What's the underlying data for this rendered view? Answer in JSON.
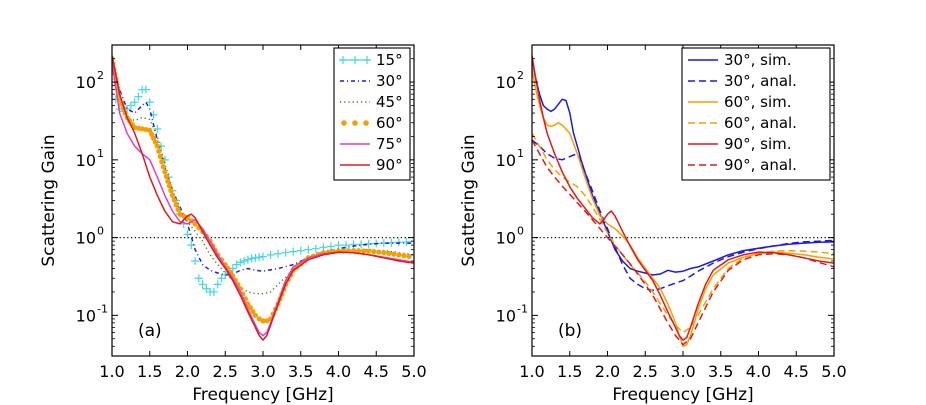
{
  "chart_data": [
    {
      "type": "line",
      "panel_label": "(a)",
      "xlabel": "Frequency [GHz]",
      "ylabel": "Scattering Gain",
      "xlim": [
        1.0,
        5.0
      ],
      "ylim": [
        0.03,
        300
      ],
      "yscale": "log",
      "x_ticks": [
        1.0,
        1.5,
        2.0,
        2.5,
        3.0,
        3.5,
        4.0,
        4.5,
        5.0
      ],
      "x_tick_labels": [
        "1.0",
        "1.5",
        "2.0",
        "2.5",
        "3.0",
        "3.5",
        "4.0",
        "4.5",
        "5.0"
      ],
      "y_ticks": [
        0.1,
        1,
        10,
        100
      ],
      "y_tick_labels": [
        "10",
        "10",
        "10",
        "10"
      ],
      "y_tick_exponents": [
        "-1",
        "0",
        "1",
        "2"
      ],
      "reference_line": {
        "y": 1.0,
        "style": "dotted",
        "color": "#000000"
      },
      "legend_position": "top-right",
      "series": [
        {
          "name": "15°",
          "color": "#44d8e0",
          "style": "plus",
          "x": [
            1.0,
            1.05,
            1.1,
            1.15,
            1.2,
            1.25,
            1.3,
            1.35,
            1.4,
            1.45,
            1.5,
            1.55,
            1.6,
            1.65,
            1.7,
            1.75,
            1.8,
            1.85,
            1.9,
            1.95,
            2.0,
            2.05,
            2.1,
            2.15,
            2.2,
            2.25,
            2.3,
            2.35,
            2.4,
            2.45,
            2.5,
            2.55,
            2.6,
            2.65,
            2.7,
            2.75,
            2.8,
            2.85,
            2.9,
            2.95,
            3.0,
            3.1,
            3.2,
            3.3,
            3.4,
            3.5,
            3.6,
            3.7,
            3.8,
            3.9,
            4.0,
            4.1,
            4.2,
            4.3,
            4.4,
            4.5,
            4.6,
            4.7,
            4.8,
            4.9,
            5.0
          ],
          "y": [
            150,
            60,
            45,
            42,
            45,
            50,
            55,
            65,
            80,
            80,
            55,
            38,
            25,
            15,
            10,
            6,
            4,
            3,
            2,
            1.5,
            1.1,
            0.8,
            0.5,
            0.3,
            0.25,
            0.22,
            0.2,
            0.2,
            0.25,
            0.3,
            0.33,
            0.35,
            0.4,
            0.45,
            0.48,
            0.5,
            0.52,
            0.54,
            0.55,
            0.56,
            0.57,
            0.6,
            0.62,
            0.64,
            0.66,
            0.68,
            0.7,
            0.72,
            0.75,
            0.77,
            0.8,
            0.8,
            0.82,
            0.82,
            0.83,
            0.84,
            0.85,
            0.86,
            0.87,
            0.88,
            0.9
          ]
        },
        {
          "name": "30°",
          "color": "#1a1ae6",
          "style": "dashdot",
          "x": [
            1.0,
            1.1,
            1.2,
            1.3,
            1.4,
            1.45,
            1.5,
            1.6,
            1.7,
            1.8,
            1.9,
            2.0,
            2.1,
            2.2,
            2.3,
            2.4,
            2.5,
            2.6,
            2.7,
            2.8,
            2.9,
            3.0,
            3.2,
            3.4,
            3.6,
            3.8,
            4.0,
            4.2,
            4.4,
            4.6,
            4.8,
            5.0
          ],
          "y": [
            200,
            80,
            45,
            40,
            50,
            55,
            45,
            18,
            8,
            4,
            2.5,
            1.5,
            0.7,
            0.45,
            0.38,
            0.35,
            0.33,
            0.34,
            0.38,
            0.4,
            0.38,
            0.37,
            0.4,
            0.45,
            0.55,
            0.65,
            0.72,
            0.78,
            0.82,
            0.85,
            0.85,
            0.85
          ]
        },
        {
          "name": "45°",
          "color": "#2a8a2a",
          "style": "dotted",
          "x": [
            1.0,
            1.1,
            1.2,
            1.3,
            1.4,
            1.5,
            1.6,
            1.7,
            1.8,
            1.9,
            2.0,
            2.1,
            2.2,
            2.3,
            2.4,
            2.5,
            2.6,
            2.7,
            2.8,
            2.9,
            3.0,
            3.1,
            3.2,
            3.4,
            3.6,
            3.8,
            4.0,
            4.2,
            4.4,
            4.6,
            4.8,
            5.0
          ],
          "y": [
            200,
            60,
            35,
            32,
            35,
            33,
            20,
            9,
            4,
            2.2,
            1.6,
            1.2,
            0.9,
            0.6,
            0.45,
            0.35,
            0.28,
            0.23,
            0.2,
            0.19,
            0.19,
            0.2,
            0.25,
            0.38,
            0.52,
            0.62,
            0.68,
            0.7,
            0.7,
            0.68,
            0.64,
            0.6
          ]
        },
        {
          "name": "60°",
          "color": "#f5a000",
          "style": "bigdots",
          "x": [
            1.0,
            1.1,
            1.2,
            1.3,
            1.4,
            1.5,
            1.6,
            1.7,
            1.8,
            1.9,
            2.0,
            2.1,
            2.2,
            2.3,
            2.4,
            2.5,
            2.6,
            2.7,
            2.8,
            2.9,
            2.95,
            3.0,
            3.05,
            3.1,
            3.2,
            3.3,
            3.4,
            3.6,
            3.8,
            4.0,
            4.2,
            4.4,
            4.6,
            4.8,
            5.0
          ],
          "y": [
            200,
            60,
            35,
            26,
            25,
            24,
            15,
            7,
            3.5,
            2.0,
            1.8,
            1.5,
            1.2,
            0.9,
            0.6,
            0.45,
            0.32,
            0.22,
            0.14,
            0.1,
            0.09,
            0.085,
            0.085,
            0.09,
            0.14,
            0.25,
            0.38,
            0.55,
            0.64,
            0.67,
            0.68,
            0.67,
            0.64,
            0.6,
            0.56
          ]
        },
        {
          "name": "75°",
          "color": "#e83ec0",
          "style": "solid",
          "x": [
            1.0,
            1.1,
            1.2,
            1.3,
            1.4,
            1.5,
            1.6,
            1.7,
            1.8,
            1.9,
            2.0,
            2.1,
            2.2,
            2.3,
            2.4,
            2.5,
            2.6,
            2.7,
            2.8,
            2.9,
            2.95,
            3.0,
            3.05,
            3.1,
            3.2,
            3.3,
            3.4,
            3.6,
            3.8,
            4.0,
            4.2,
            4.4,
            4.6,
            4.8,
            5.0
          ],
          "y": [
            180,
            40,
            22,
            15,
            12,
            10,
            6,
            3.5,
            2.2,
            1.6,
            1.5,
            1.7,
            1.3,
            0.9,
            0.6,
            0.42,
            0.3,
            0.2,
            0.12,
            0.075,
            0.06,
            0.055,
            0.06,
            0.08,
            0.15,
            0.28,
            0.42,
            0.55,
            0.62,
            0.65,
            0.64,
            0.6,
            0.56,
            0.52,
            0.48
          ]
        },
        {
          "name": "90°",
          "color": "#e01a1a",
          "style": "solid",
          "x": [
            1.0,
            1.1,
            1.2,
            1.3,
            1.4,
            1.5,
            1.6,
            1.7,
            1.8,
            1.9,
            1.95,
            2.0,
            2.05,
            2.1,
            2.2,
            2.3,
            2.4,
            2.5,
            2.6,
            2.7,
            2.8,
            2.9,
            2.95,
            3.0,
            3.05,
            3.1,
            3.2,
            3.3,
            3.4,
            3.6,
            3.8,
            4.0,
            4.2,
            4.4,
            4.6,
            4.8,
            5.0
          ],
          "y": [
            220,
            70,
            35,
            22,
            12,
            6,
            3.5,
            2.2,
            1.6,
            1.5,
            1.7,
            1.9,
            2.0,
            1.8,
            1.2,
            0.8,
            0.55,
            0.4,
            0.28,
            0.18,
            0.11,
            0.07,
            0.055,
            0.048,
            0.055,
            0.075,
            0.14,
            0.25,
            0.38,
            0.52,
            0.6,
            0.65,
            0.64,
            0.6,
            0.55,
            0.5,
            0.47
          ]
        }
      ]
    },
    {
      "type": "line",
      "panel_label": "(b)",
      "xlabel": "Frequency [GHz]",
      "ylabel": "Scattering Gain",
      "xlim": [
        1.0,
        5.0
      ],
      "ylim": [
        0.03,
        300
      ],
      "yscale": "log",
      "x_ticks": [
        1.0,
        1.5,
        2.0,
        2.5,
        3.0,
        3.5,
        4.0,
        4.5,
        5.0
      ],
      "x_tick_labels": [
        "1.0",
        "1.5",
        "2.0",
        "2.5",
        "3.0",
        "3.5",
        "4.0",
        "4.5",
        "5.0"
      ],
      "y_ticks": [
        0.1,
        1,
        10,
        100
      ],
      "y_tick_labels": [
        "10",
        "10",
        "10",
        "10"
      ],
      "y_tick_exponents": [
        "-1",
        "0",
        "1",
        "2"
      ],
      "reference_line": {
        "y": 1.0,
        "style": "dotted",
        "color": "#000000"
      },
      "legend_position": "top-right",
      "series": [
        {
          "name": "30°, sim.",
          "color": "#1a1ae6",
          "style": "solid",
          "x": [
            1.0,
            1.05,
            1.1,
            1.15,
            1.2,
            1.25,
            1.3,
            1.35,
            1.4,
            1.45,
            1.5,
            1.55,
            1.6,
            1.65,
            1.7,
            1.8,
            1.9,
            2.0,
            2.1,
            2.2,
            2.3,
            2.4,
            2.5,
            2.6,
            2.7,
            2.8,
            2.9,
            3.0,
            3.1,
            3.2,
            3.4,
            3.6,
            3.8,
            4.0,
            4.2,
            4.4,
            4.6,
            4.8,
            5.0
          ],
          "y": [
            200,
            110,
            70,
            50,
            45,
            42,
            45,
            52,
            60,
            58,
            40,
            22,
            15,
            10,
            7,
            3.5,
            2.0,
            1.2,
            0.7,
            0.5,
            0.4,
            0.37,
            0.35,
            0.33,
            0.34,
            0.38,
            0.36,
            0.37,
            0.4,
            0.42,
            0.5,
            0.6,
            0.68,
            0.73,
            0.78,
            0.82,
            0.85,
            0.87,
            0.88
          ]
        },
        {
          "name": "30°, anal.",
          "color": "#1a1ae6",
          "style": "dashed",
          "x": [
            1.0,
            1.1,
            1.2,
            1.3,
            1.4,
            1.5,
            1.6,
            1.7,
            1.8,
            1.9,
            2.0,
            2.1,
            2.2,
            2.3,
            2.4,
            2.5,
            2.6,
            2.7,
            2.8,
            2.9,
            3.0,
            3.1,
            3.2,
            3.4,
            3.6,
            3.8,
            4.0,
            4.2,
            4.4,
            4.6,
            4.8,
            5.0
          ],
          "y": [
            18,
            15,
            12,
            10.5,
            10,
            11,
            12,
            7,
            4,
            2.2,
            1.3,
            0.75,
            0.45,
            0.3,
            0.25,
            0.22,
            0.21,
            0.22,
            0.24,
            0.26,
            0.28,
            0.32,
            0.37,
            0.47,
            0.57,
            0.65,
            0.72,
            0.78,
            0.84,
            0.88,
            0.9,
            0.92
          ]
        },
        {
          "name": "60°, sim.",
          "color": "#f5a000",
          "style": "solid",
          "x": [
            1.0,
            1.05,
            1.1,
            1.15,
            1.2,
            1.25,
            1.3,
            1.35,
            1.4,
            1.5,
            1.6,
            1.7,
            1.8,
            1.9,
            2.0,
            2.1,
            2.2,
            2.3,
            2.4,
            2.5,
            2.6,
            2.7,
            2.8,
            2.9,
            2.95,
            3.0,
            3.05,
            3.1,
            3.2,
            3.3,
            3.4,
            3.6,
            3.8,
            4.0,
            4.2,
            4.4,
            4.6,
            4.8,
            5.0
          ],
          "y": [
            150,
            80,
            50,
            35,
            28,
            27,
            28,
            30,
            28,
            22,
            12,
            6,
            3.2,
            1.9,
            1.5,
            1.3,
            1.05,
            0.8,
            0.55,
            0.4,
            0.3,
            0.22,
            0.14,
            0.08,
            0.055,
            0.04,
            0.042,
            0.055,
            0.12,
            0.22,
            0.33,
            0.47,
            0.56,
            0.62,
            0.65,
            0.63,
            0.6,
            0.56,
            0.53
          ]
        },
        {
          "name": "60°, anal.",
          "color": "#f5a000",
          "style": "dashed",
          "x": [
            1.0,
            1.1,
            1.2,
            1.3,
            1.4,
            1.5,
            1.6,
            1.7,
            1.8,
            1.9,
            2.0,
            2.1,
            2.2,
            2.3,
            2.4,
            2.5,
            2.6,
            2.7,
            2.8,
            2.9,
            3.0,
            3.1,
            3.2,
            3.4,
            3.6,
            3.8,
            4.0,
            4.2,
            4.4,
            4.6,
            4.8,
            5.0
          ],
          "y": [
            22,
            15,
            10,
            7.5,
            6,
            5.2,
            4.5,
            3.5,
            2.5,
            1.7,
            1.15,
            0.8,
            0.6,
            0.45,
            0.35,
            0.27,
            0.2,
            0.14,
            0.1,
            0.075,
            0.06,
            0.07,
            0.1,
            0.22,
            0.4,
            0.55,
            0.63,
            0.67,
            0.68,
            0.67,
            0.65,
            0.62
          ]
        },
        {
          "name": "90°, sim.",
          "color": "#e01a1a",
          "style": "solid",
          "x": [
            1.0,
            1.05,
            1.1,
            1.15,
            1.2,
            1.3,
            1.4,
            1.5,
            1.6,
            1.7,
            1.8,
            1.9,
            1.95,
            2.0,
            2.05,
            2.1,
            2.2,
            2.3,
            2.4,
            2.5,
            2.6,
            2.7,
            2.8,
            2.9,
            2.95,
            3.0,
            3.05,
            3.1,
            3.2,
            3.3,
            3.4,
            3.6,
            3.8,
            4.0,
            4.2,
            4.4,
            4.6,
            4.8,
            5.0
          ],
          "y": [
            220,
            110,
            60,
            35,
            22,
            12,
            7,
            4.5,
            3.2,
            2.4,
            1.8,
            1.5,
            1.7,
            2.0,
            2.2,
            1.9,
            1.2,
            0.78,
            0.52,
            0.38,
            0.28,
            0.18,
            0.11,
            0.07,
            0.055,
            0.048,
            0.052,
            0.07,
            0.14,
            0.25,
            0.38,
            0.52,
            0.6,
            0.65,
            0.64,
            0.6,
            0.55,
            0.5,
            0.47
          ]
        },
        {
          "name": "90°, anal.",
          "color": "#e01a1a",
          "style": "dashed",
          "x": [
            1.0,
            1.1,
            1.2,
            1.3,
            1.4,
            1.5,
            1.6,
            1.7,
            1.8,
            1.9,
            2.0,
            2.1,
            2.2,
            2.3,
            2.4,
            2.5,
            2.6,
            2.7,
            2.8,
            2.9,
            3.0,
            3.1,
            3.2,
            3.4,
            3.6,
            3.8,
            4.0,
            4.2,
            4.4,
            4.6,
            4.8,
            5.0
          ],
          "y": [
            18,
            12,
            8,
            6,
            4.6,
            3.6,
            2.8,
            2.2,
            1.7,
            1.3,
            1.0,
            0.78,
            0.6,
            0.46,
            0.34,
            0.25,
            0.18,
            0.12,
            0.08,
            0.055,
            0.042,
            0.05,
            0.08,
            0.2,
            0.38,
            0.52,
            0.6,
            0.62,
            0.6,
            0.55,
            0.48,
            0.42
          ]
        }
      ]
    }
  ]
}
